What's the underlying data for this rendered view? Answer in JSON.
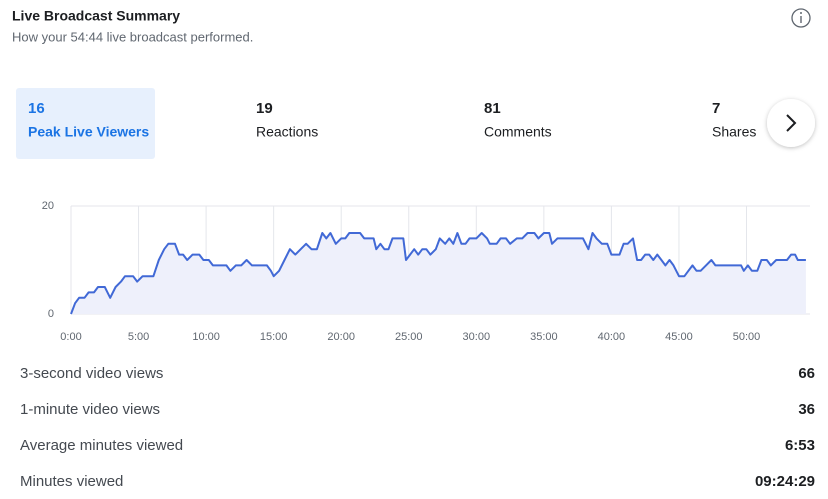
{
  "header": {
    "title": "Live Broadcast Summary",
    "subtitle": "How your 54:44 live broadcast performed."
  },
  "tabs": [
    {
      "value": "16",
      "label": "Peak Live Viewers"
    },
    {
      "value": "19",
      "label": "Reactions"
    },
    {
      "value": "81",
      "label": "Comments"
    },
    {
      "value": "7",
      "label": "Shares"
    }
  ],
  "chart_data": {
    "type": "line",
    "color": "#4169d6",
    "fill": "#eef0fb",
    "grid": true,
    "x": [
      0,
      0.3,
      0.6,
      1,
      1.3,
      1.7,
      2,
      2.5,
      2.7,
      2.9,
      3.3,
      3.7,
      4,
      4.6,
      4.9,
      5.3,
      5.8,
      6.1,
      6.5,
      6.9,
      7.2,
      7.7,
      8,
      8.3,
      8.6,
      9,
      9.5,
      9.8,
      10.2,
      10.5,
      11,
      11.5,
      11.8,
      12.2,
      12.6,
      13,
      13.4,
      14,
      14.5,
      14.8,
      15,
      15.4,
      15.8,
      16.2,
      16.6,
      17,
      17.4,
      17.8,
      18.2,
      18.6,
      18.9,
      19.2,
      19.6,
      20,
      20.3,
      20.6,
      21.4,
      21.7,
      22.4,
      22.6,
      22.9,
      23.2,
      23.5,
      23.8,
      24.2,
      24.6,
      24.8,
      25.1,
      25.4,
      25.7,
      26,
      26.3,
      26.6,
      27,
      27.3,
      27.7,
      28,
      28.3,
      28.6,
      28.9,
      29.2,
      29.5,
      30,
      30.4,
      30.8,
      31,
      31.5,
      31.8,
      32.2,
      32.5,
      33,
      33.4,
      33.8,
      34.3,
      34.6,
      35,
      35.4,
      35.6,
      36,
      37,
      37.9,
      38.3,
      38.6,
      38.9,
      39.3,
      39.7,
      40,
      40.3,
      40.6,
      40.9,
      41.2,
      41.6,
      41.9,
      42.2,
      42.5,
      42.8,
      43.1,
      43.4,
      43.7,
      44,
      44.3,
      44.6,
      45,
      45.4,
      45.7,
      46,
      46.3,
      46.6,
      47,
      47.4,
      47.7,
      48.3,
      49,
      49.6,
      49.8,
      50.1,
      50.4,
      50.8,
      51.1,
      51.5,
      51.8,
      52.2,
      52.6,
      53,
      53.3,
      53.6,
      53.8,
      54.4
    ],
    "values": [
      0,
      2,
      3,
      3,
      4,
      4,
      5,
      5,
      4,
      3,
      5,
      6,
      7,
      7,
      6,
      7,
      7,
      7,
      10,
      12,
      13,
      13,
      11,
      11,
      10,
      11,
      11,
      10,
      10,
      9,
      9,
      9,
      8,
      9,
      9,
      10,
      9,
      9,
      9,
      8,
      7,
      8,
      10,
      12,
      11,
      12,
      13,
      12,
      12,
      15,
      14,
      15,
      13,
      14,
      14,
      15,
      15,
      14,
      14,
      12,
      13,
      12,
      12,
      14,
      14,
      14,
      10,
      11,
      12,
      11,
      12,
      12,
      11,
      12,
      14,
      13,
      14,
      13,
      15,
      13,
      13,
      14,
      14,
      15,
      14,
      13,
      13,
      14,
      14,
      13,
      14,
      14,
      15,
      15,
      14,
      15,
      15,
      13,
      14,
      14,
      14,
      12,
      15,
      14,
      13,
      13,
      11,
      11,
      11,
      13,
      13,
      14,
      10,
      10,
      11,
      11,
      10,
      11,
      10,
      9,
      10,
      9,
      7,
      7,
      8,
      9,
      8,
      8,
      9,
      10,
      9,
      9,
      9,
      9,
      8,
      9,
      8,
      8,
      10,
      10,
      9,
      10,
      10,
      10,
      11,
      11,
      10,
      10
    ],
    "xlim": [
      0,
      54.7
    ],
    "ylim": [
      0,
      20
    ],
    "yticks": [
      0,
      20
    ],
    "xticks": [
      {
        "value": 0,
        "label": "0:00"
      },
      {
        "value": 5,
        "label": "5:00"
      },
      {
        "value": 10,
        "label": "10:00"
      },
      {
        "value": 15,
        "label": "15:00"
      },
      {
        "value": 20,
        "label": "20:00"
      },
      {
        "value": 25,
        "label": "25:00"
      },
      {
        "value": 30,
        "label": "30:00"
      },
      {
        "value": 35,
        "label": "35:00"
      },
      {
        "value": 40,
        "label": "40:00"
      },
      {
        "value": 45,
        "label": "45:00"
      },
      {
        "value": 50,
        "label": "50:00"
      }
    ]
  },
  "stats": [
    {
      "label": "3-second video views",
      "value": "66"
    },
    {
      "label": "1-minute video views",
      "value": "36"
    },
    {
      "label": "Average minutes viewed",
      "value": "6:53"
    },
    {
      "label": "Minutes viewed",
      "value": "09:24:29"
    }
  ]
}
